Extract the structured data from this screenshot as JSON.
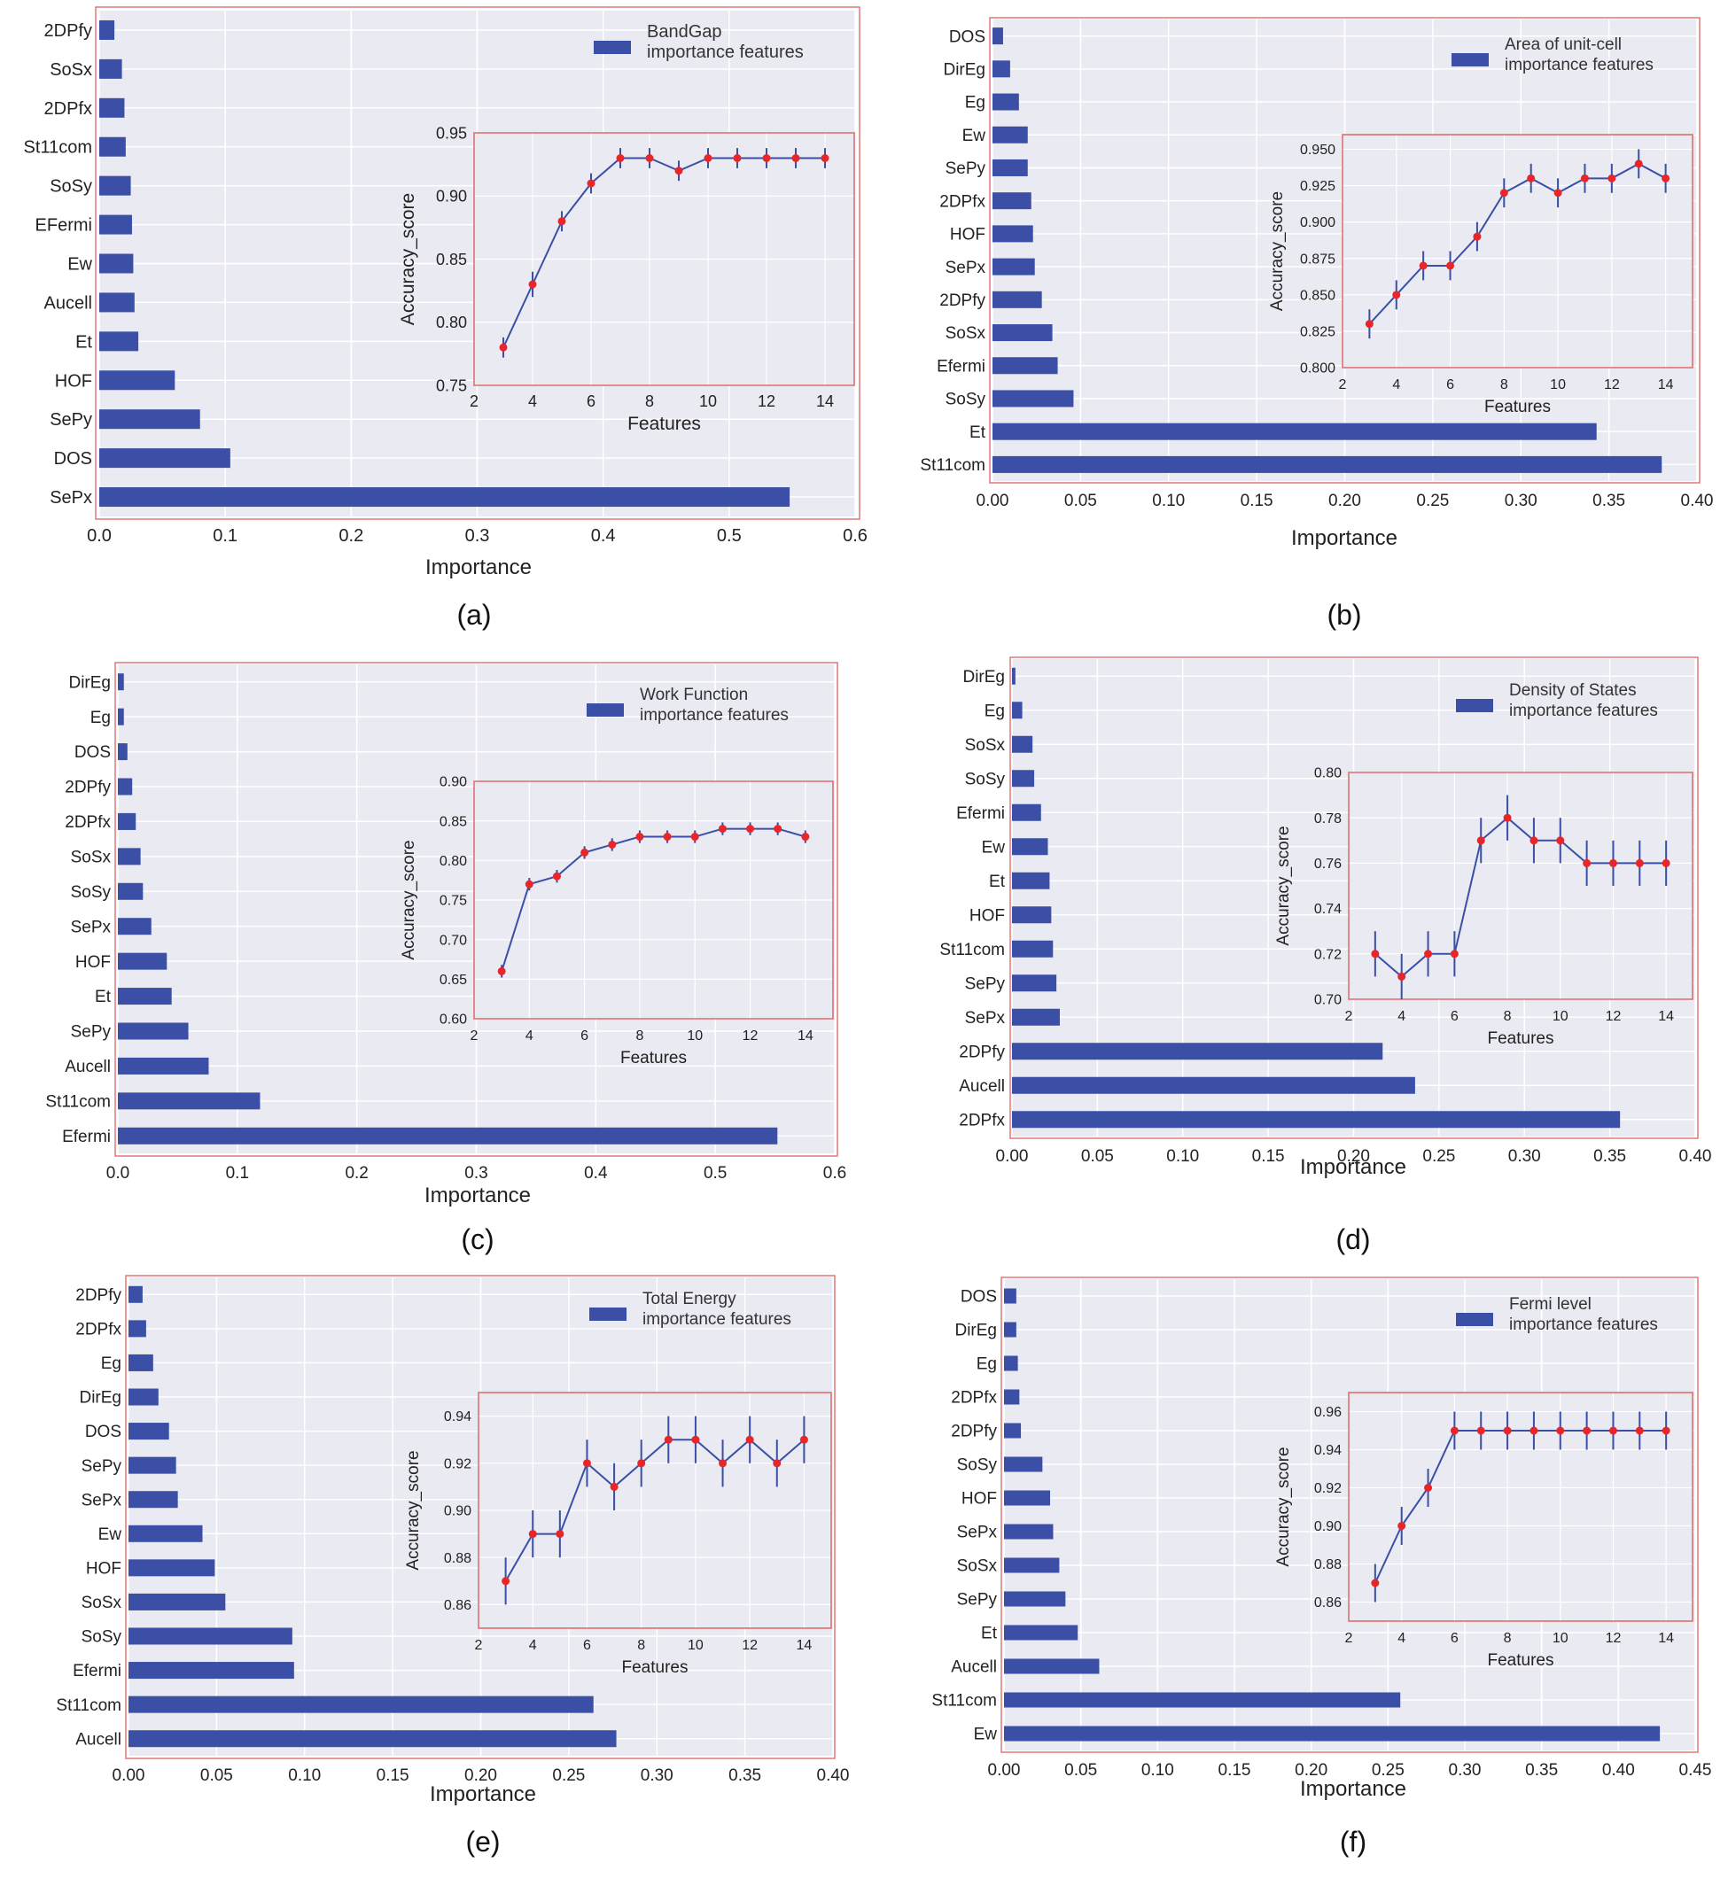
{
  "colors": {
    "bar": "#3a4fa5",
    "line": "#3a4fa5",
    "point": "#e8262a",
    "frame": "#e07878",
    "plot_bg": "#eaeaf2",
    "grid": "#ffffff",
    "text": "#222222"
  },
  "chart_data": [
    {
      "type": "bar",
      "orientation": "horizontal",
      "panel_label": "(a)",
      "categories": [
        "2DPfy",
        "SoSx",
        "2DPfx",
        "St11com",
        "SoSy",
        "EFermi",
        "Ew",
        "Aucell",
        "Et",
        "HOF",
        "SePy",
        "DOS",
        "SePx"
      ],
      "values": [
        0.012,
        0.018,
        0.02,
        0.021,
        0.025,
        0.026,
        0.027,
        0.028,
        0.031,
        0.06,
        0.08,
        0.104,
        0.548
      ],
      "xlim": [
        0,
        0.6
      ],
      "xticks": [
        "0.0",
        "0.1",
        "0.2",
        "0.3",
        "0.4",
        "0.5",
        "0.6"
      ],
      "xlabel": "Importance",
      "legend": [
        "BandGap",
        "importance features"
      ],
      "inset": {
        "type": "line",
        "xlabel": "Features",
        "ylabel": "Accuracy_score",
        "x": [
          3,
          4,
          5,
          6,
          7,
          8,
          9,
          10,
          11,
          12,
          13,
          14
        ],
        "y": [
          0.78,
          0.83,
          0.88,
          0.91,
          0.93,
          0.93,
          0.92,
          0.93,
          0.93,
          0.93,
          0.93,
          0.93
        ],
        "err": [
          0.008,
          0.01,
          0.008,
          0.008,
          0.008,
          0.008,
          0.008,
          0.008,
          0.008,
          0.008,
          0.008,
          0.008
        ],
        "xlim": [
          2,
          15
        ],
        "xticks": [
          "2",
          "4",
          "6",
          "8",
          "10",
          "12",
          "14"
        ],
        "ylim": [
          0.75,
          0.95
        ],
        "yticks": [
          "0.75",
          "0.80",
          "0.85",
          "0.90",
          "0.95"
        ]
      }
    },
    {
      "type": "bar",
      "orientation": "horizontal",
      "panel_label": "(b)",
      "categories": [
        "DOS",
        "DirEg",
        "Eg",
        "Ew",
        "SePy",
        "2DPfx",
        "HOF",
        "SePx",
        "2DPfy",
        "SoSx",
        "Efermi",
        "SoSy",
        "Et",
        "St11com"
      ],
      "values": [
        0.006,
        0.01,
        0.015,
        0.02,
        0.02,
        0.022,
        0.023,
        0.024,
        0.028,
        0.034,
        0.037,
        0.046,
        0.343,
        0.38
      ],
      "xlim": [
        0,
        0.4
      ],
      "xticks": [
        "0.00",
        "0.05",
        "0.10",
        "0.15",
        "0.20",
        "0.25",
        "0.30",
        "0.35",
        "0.40"
      ],
      "xlabel": "Importance",
      "legend": [
        "Area of unit-cell",
        "importance features"
      ],
      "inset": {
        "type": "line",
        "xlabel": "Features",
        "ylabel": "Accuracy_score",
        "x": [
          3,
          4,
          5,
          6,
          7,
          8,
          9,
          10,
          11,
          12,
          13,
          14
        ],
        "y": [
          0.83,
          0.85,
          0.87,
          0.87,
          0.89,
          0.92,
          0.93,
          0.92,
          0.93,
          0.93,
          0.94,
          0.93
        ],
        "err": [
          0.01,
          0.01,
          0.01,
          0.01,
          0.01,
          0.01,
          0.01,
          0.01,
          0.01,
          0.01,
          0.01,
          0.01
        ],
        "xlim": [
          2,
          15
        ],
        "xticks": [
          "2",
          "4",
          "6",
          "8",
          "10",
          "12",
          "14"
        ],
        "ylim": [
          0.8,
          0.96
        ],
        "yticks": [
          "0.800",
          "0.825",
          "0.850",
          "0.875",
          "0.900",
          "0.925",
          "0.950"
        ]
      }
    },
    {
      "type": "bar",
      "orientation": "horizontal",
      "panel_label": "(c)",
      "categories": [
        "DirEg",
        "Eg",
        "DOS",
        "2DPfy",
        "2DPfx",
        "SoSx",
        "SoSy",
        "SePx",
        "HOF",
        "Et",
        "SePy",
        "Aucell",
        "St11com",
        "Efermi"
      ],
      "values": [
        0.005,
        0.005,
        0.008,
        0.012,
        0.015,
        0.019,
        0.021,
        0.028,
        0.041,
        0.045,
        0.059,
        0.076,
        0.119,
        0.552
      ],
      "xlim": [
        0,
        0.6
      ],
      "xticks": [
        "0.0",
        "0.1",
        "0.2",
        "0.3",
        "0.4",
        "0.5",
        "0.6"
      ],
      "xlabel": "Importance",
      "legend": [
        "Work Function",
        "importance features"
      ],
      "inset": {
        "type": "line",
        "xlabel": "Features",
        "ylabel": "Accuracy_score",
        "x": [
          3,
          4,
          5,
          6,
          7,
          8,
          9,
          10,
          11,
          12,
          13,
          14
        ],
        "y": [
          0.66,
          0.77,
          0.78,
          0.81,
          0.82,
          0.83,
          0.83,
          0.83,
          0.84,
          0.84,
          0.84,
          0.83
        ],
        "err": [
          0.008,
          0.008,
          0.008,
          0.008,
          0.008,
          0.008,
          0.008,
          0.008,
          0.008,
          0.008,
          0.008,
          0.008
        ],
        "xlim": [
          2,
          15
        ],
        "xticks": [
          "2",
          "4",
          "6",
          "8",
          "10",
          "12",
          "14"
        ],
        "ylim": [
          0.6,
          0.9
        ],
        "yticks": [
          "0.60",
          "0.65",
          "0.70",
          "0.75",
          "0.80",
          "0.85",
          "0.90"
        ]
      }
    },
    {
      "type": "bar",
      "orientation": "horizontal",
      "panel_label": "(d)",
      "categories": [
        "DirEg",
        "Eg",
        "SoSx",
        "SoSy",
        "Efermi",
        "Ew",
        "Et",
        "HOF",
        "St11com",
        "SePy",
        "SePx",
        "2DPfy",
        "Aucell",
        "2DPfx"
      ],
      "values": [
        0.002,
        0.006,
        0.012,
        0.013,
        0.017,
        0.021,
        0.022,
        0.023,
        0.024,
        0.026,
        0.028,
        0.217,
        0.236,
        0.356
      ],
      "xlim": [
        0,
        0.4
      ],
      "xticks": [
        "0.00",
        "0.05",
        "0.10",
        "0.15",
        "0.20",
        "0.25",
        "0.30",
        "0.35",
        "0.40"
      ],
      "xlabel": "Importance",
      "legend": [
        "Density of States",
        "importance features"
      ],
      "inset": {
        "type": "line",
        "xlabel": "Features",
        "ylabel": "Accuracy_score",
        "x": [
          3,
          4,
          5,
          6,
          7,
          8,
          9,
          10,
          11,
          12,
          13,
          14
        ],
        "y": [
          0.72,
          0.71,
          0.72,
          0.72,
          0.77,
          0.78,
          0.77,
          0.77,
          0.76,
          0.76,
          0.76,
          0.76
        ],
        "err": [
          0.01,
          0.01,
          0.01,
          0.01,
          0.01,
          0.01,
          0.01,
          0.01,
          0.01,
          0.01,
          0.01,
          0.01
        ],
        "xlim": [
          2,
          15
        ],
        "xticks": [
          "2",
          "4",
          "6",
          "8",
          "10",
          "12",
          "14"
        ],
        "ylim": [
          0.7,
          0.8
        ],
        "yticks": [
          "0.70",
          "0.72",
          "0.74",
          "0.76",
          "0.78",
          "0.80"
        ]
      }
    },
    {
      "type": "bar",
      "orientation": "horizontal",
      "panel_label": "(e)",
      "categories": [
        "2DPfy",
        "2DPfx",
        "Eg",
        "DirEg",
        "DOS",
        "SePy",
        "SePx",
        "Ew",
        "HOF",
        "SoSx",
        "SoSy",
        "Efermi",
        "St11com",
        "Aucell"
      ],
      "values": [
        0.008,
        0.01,
        0.014,
        0.017,
        0.023,
        0.027,
        0.028,
        0.042,
        0.049,
        0.055,
        0.093,
        0.094,
        0.264,
        0.277
      ],
      "xlim": [
        0,
        0.4
      ],
      "xticks": [
        "0.00",
        "0.05",
        "0.10",
        "0.15",
        "0.20",
        "0.25",
        "0.30",
        "0.35",
        "0.40"
      ],
      "xlabel": "Importance",
      "legend": [
        "Total Energy",
        "importance features"
      ],
      "inset": {
        "type": "line",
        "xlabel": "Features",
        "ylabel": "Accuracy_score",
        "x": [
          3,
          4,
          5,
          6,
          7,
          8,
          9,
          10,
          11,
          12,
          13,
          14
        ],
        "y": [
          0.87,
          0.89,
          0.89,
          0.92,
          0.91,
          0.92,
          0.93,
          0.93,
          0.92,
          0.93,
          0.92,
          0.93
        ],
        "err": [
          0.01,
          0.01,
          0.01,
          0.01,
          0.01,
          0.01,
          0.01,
          0.01,
          0.01,
          0.01,
          0.01,
          0.01
        ],
        "xlim": [
          2,
          15
        ],
        "xticks": [
          "2",
          "4",
          "6",
          "8",
          "10",
          "12",
          "14"
        ],
        "ylim": [
          0.85,
          0.95
        ],
        "yticks": [
          "0.86",
          "0.88",
          "0.90",
          "0.92",
          "0.94"
        ]
      }
    },
    {
      "type": "bar",
      "orientation": "horizontal",
      "panel_label": "(f)",
      "categories": [
        "DOS",
        "DirEg",
        "Eg",
        "2DPfx",
        "2DPfy",
        "SoSy",
        "HOF",
        "SePx",
        "SoSx",
        "SePy",
        "Et",
        "Aucell",
        "St11com",
        "Ew"
      ],
      "values": [
        0.008,
        0.008,
        0.009,
        0.01,
        0.011,
        0.025,
        0.03,
        0.032,
        0.036,
        0.04,
        0.048,
        0.062,
        0.258,
        0.427
      ],
      "xlim": [
        0,
        0.45
      ],
      "xticks": [
        "0.00",
        "0.05",
        "0.10",
        "0.15",
        "0.20",
        "0.25",
        "0.30",
        "0.35",
        "0.40",
        "0.45"
      ],
      "xlabel": "Importance",
      "legend": [
        "Fermi level",
        "importance features"
      ],
      "inset": {
        "type": "line",
        "xlabel": "Features",
        "ylabel": "Accuracy_score",
        "x": [
          3,
          4,
          5,
          6,
          7,
          8,
          9,
          10,
          11,
          12,
          13,
          14
        ],
        "y": [
          0.87,
          0.9,
          0.92,
          0.95,
          0.95,
          0.95,
          0.95,
          0.95,
          0.95,
          0.95,
          0.95,
          0.95
        ],
        "err": [
          0.01,
          0.01,
          0.01,
          0.01,
          0.01,
          0.01,
          0.01,
          0.01,
          0.01,
          0.01,
          0.01,
          0.01
        ],
        "xlim": [
          2,
          15
        ],
        "xticks": [
          "2",
          "4",
          "6",
          "8",
          "10",
          "12",
          "14"
        ],
        "ylim": [
          0.85,
          0.97
        ],
        "yticks": [
          "0.86",
          "0.88",
          "0.90",
          "0.92",
          "0.94",
          "0.96"
        ]
      }
    }
  ]
}
